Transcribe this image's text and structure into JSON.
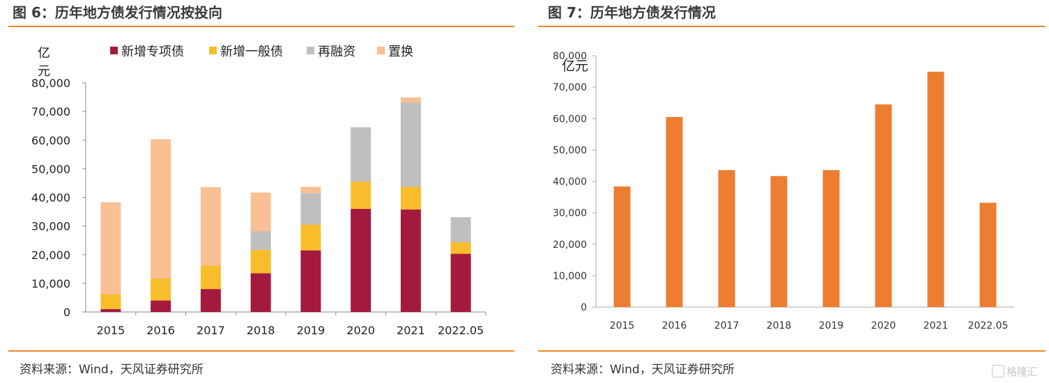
{
  "left": {
    "title": "图 6：历年地方债发行情况按投向",
    "source": "资料来源：Wind，天风证券研究所"
  },
  "right": {
    "title": "图 7：历年地方债发行情况",
    "source": "资料来源：Wind，天风证券研究所"
  },
  "watermark": "格隆汇",
  "colors": {
    "rule": "#e8872b",
    "special": "#a31a3e",
    "general": "#f9bd2c",
    "refinance": "#bfbfbf",
    "replacement": "#f8c093",
    "total": "#ed7d31"
  },
  "chart_data": [
    {
      "type": "bar",
      "stacked": true,
      "unit_label": "亿元",
      "categories": [
        "2015",
        "2016",
        "2017",
        "2018",
        "2019",
        "2020",
        "2021",
        "2022.05"
      ],
      "ylim": [
        0,
        80000
      ],
      "yticks": [
        "0",
        "10,000",
        "20,000",
        "30,000",
        "40,000",
        "50,000",
        "60,000",
        "70,000",
        "80,000"
      ],
      "legend_position": "top",
      "series": [
        {
          "name": "新增专项债",
          "color": "#a31a3e",
          "values": [
            1000,
            4000,
            8000,
            13500,
            21500,
            36000,
            35800,
            20300
          ]
        },
        {
          "name": "新增一般债",
          "color": "#f9bd2c",
          "values": [
            5100,
            7700,
            8200,
            8200,
            9000,
            9500,
            7900,
            4000
          ]
        },
        {
          "name": "再融资",
          "color": "#bfbfbf",
          "values": [
            0,
            0,
            0,
            6500,
            11000,
            19000,
            29400,
            8800
          ]
        },
        {
          "name": "置换",
          "color": "#f8c093",
          "values": [
            32200,
            48600,
            27400,
            13500,
            2200,
            0,
            1800,
            0
          ]
        }
      ]
    },
    {
      "type": "bar",
      "unit_label": "亿元",
      "categories": [
        "2015",
        "2016",
        "2017",
        "2018",
        "2019",
        "2020",
        "2021",
        "2022.05"
      ],
      "ylim": [
        0,
        80000
      ],
      "yticks": [
        "0",
        "10,000",
        "20,000",
        "30,000",
        "40,000",
        "50,000",
        "60,000",
        "70,000",
        "80,000"
      ],
      "series": [
        {
          "color": "#ed7d31",
          "values": [
            38400,
            60500,
            43600,
            41700,
            43600,
            64500,
            74900,
            33200
          ]
        }
      ]
    }
  ]
}
